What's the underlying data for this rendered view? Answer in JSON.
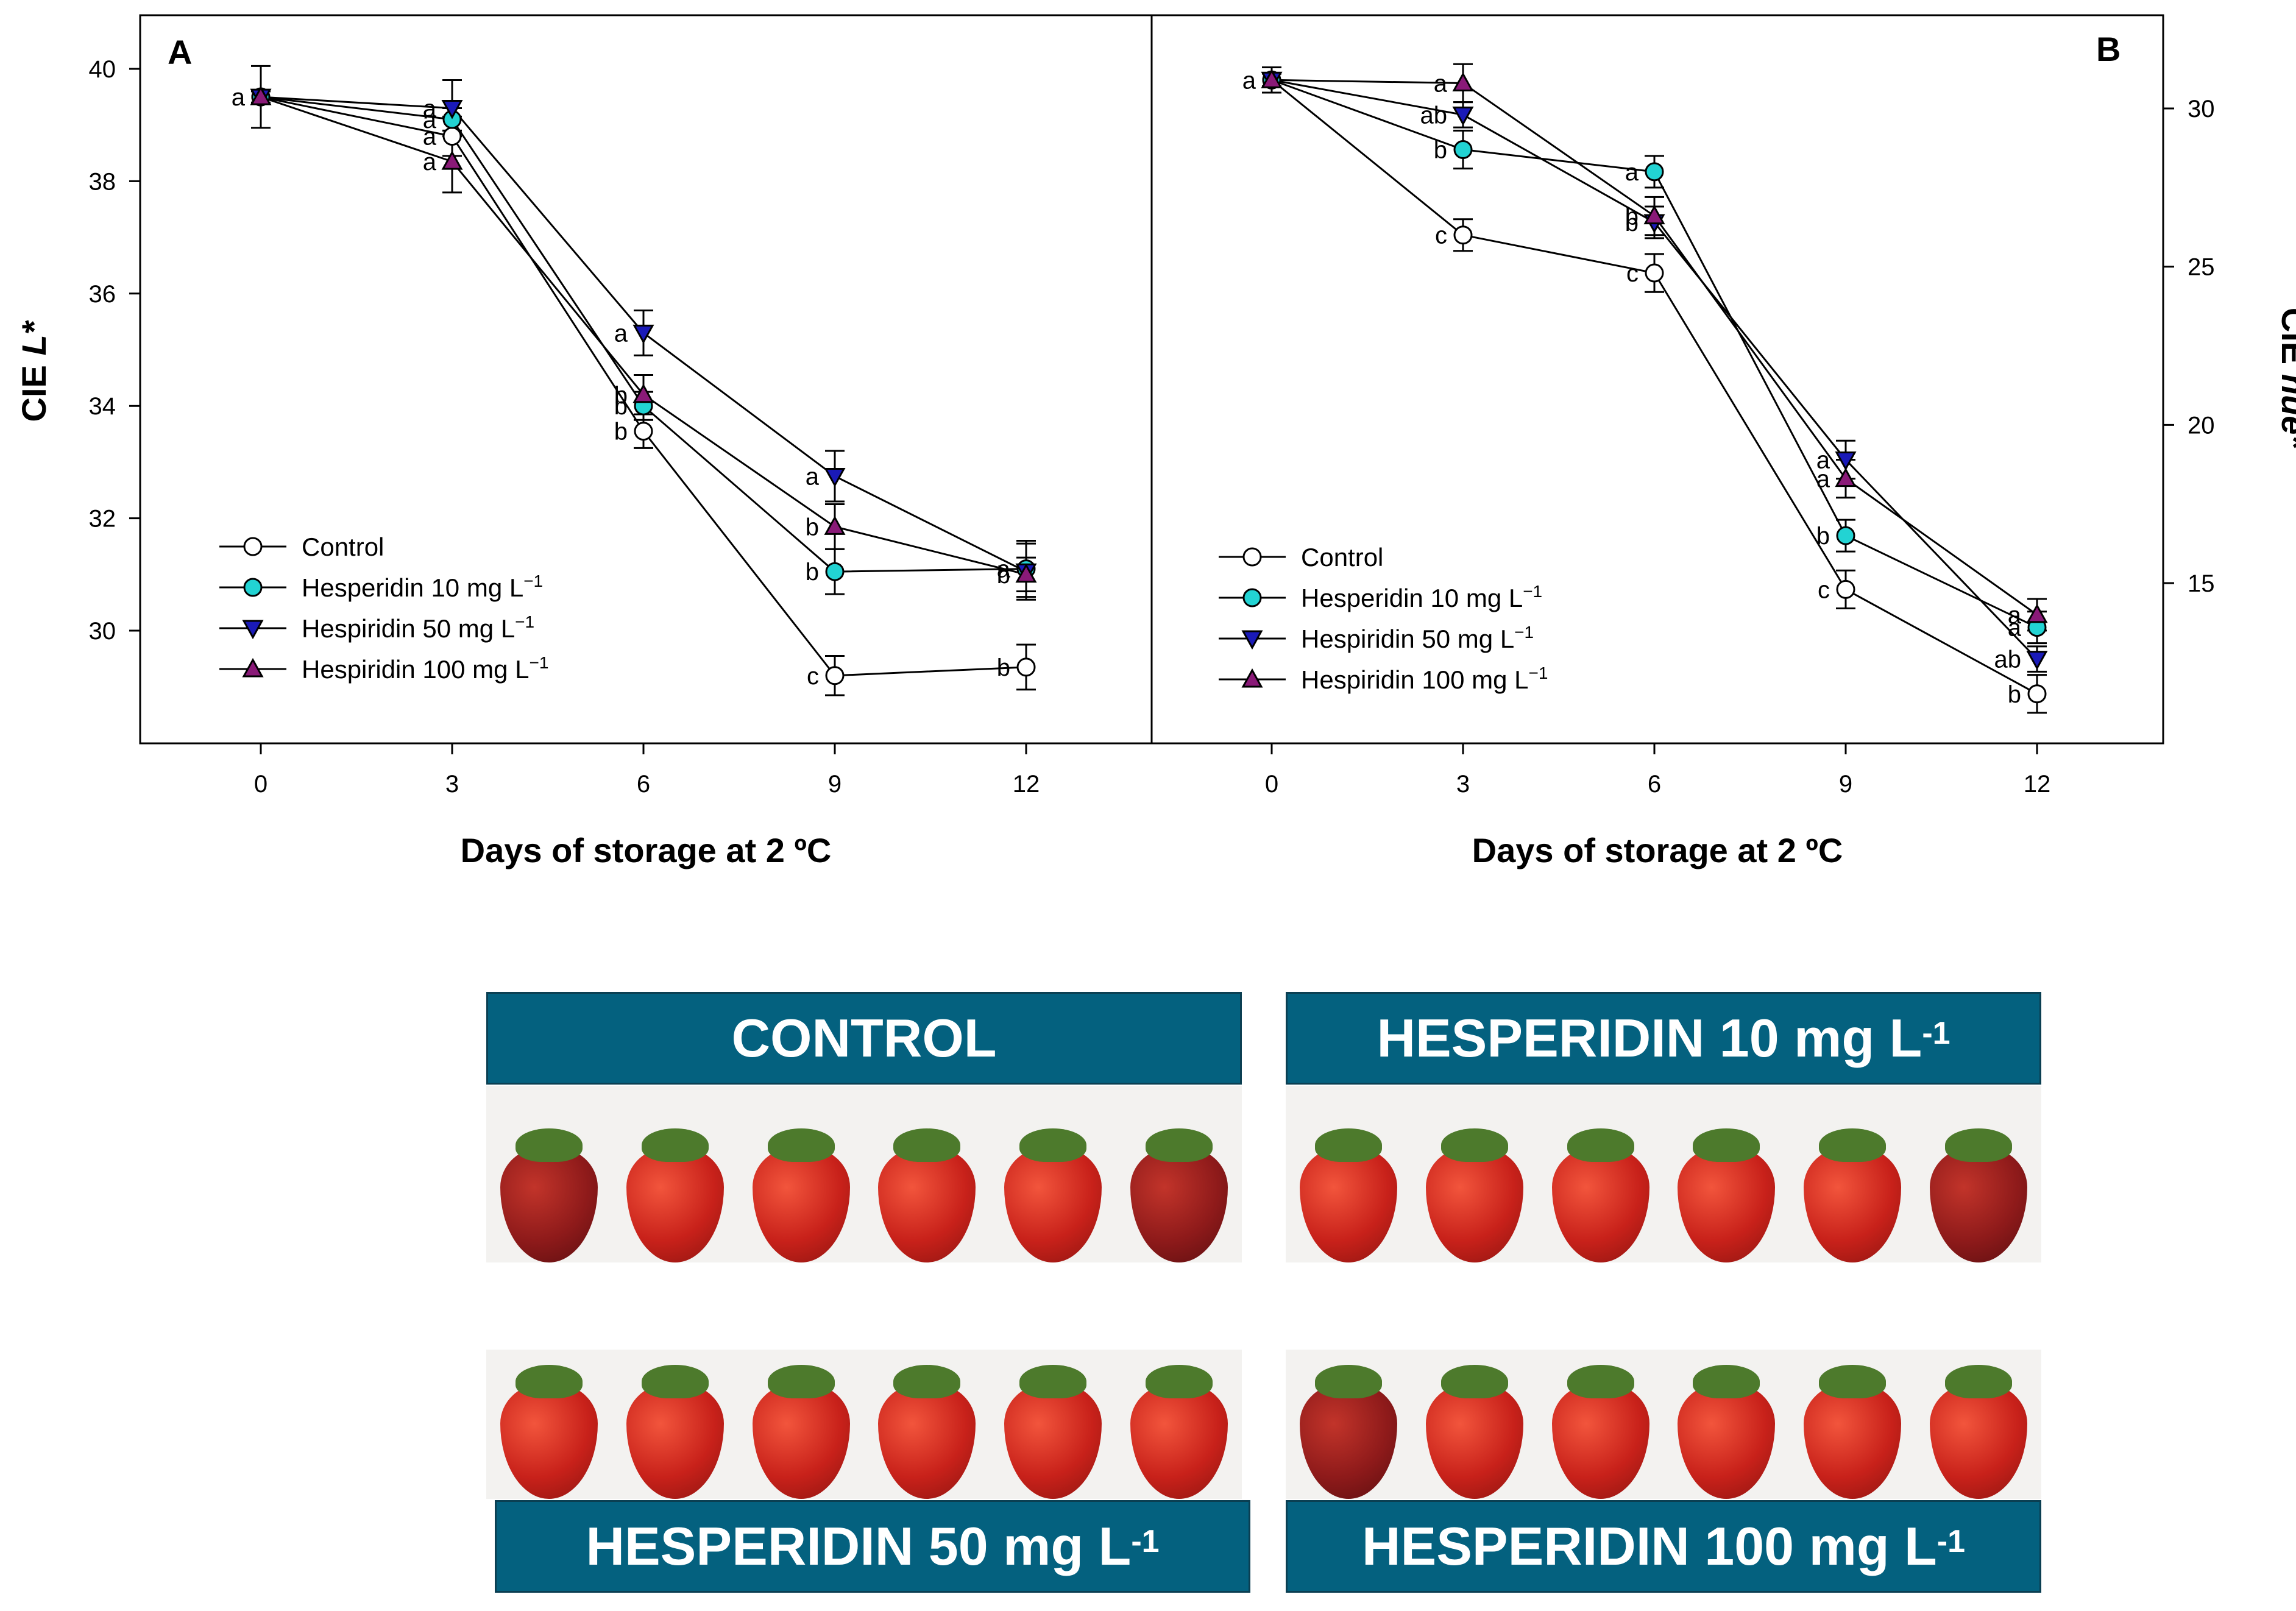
{
  "chart_data": [
    {
      "type": "line",
      "panel": "A",
      "xlabel": "Days of storage at 2 ºC",
      "ylabel": "CIE L*",
      "ylabel_main": "CIE ",
      "ylabel_italic": "L*",
      "x": [
        0,
        3,
        6,
        9,
        12
      ],
      "xticks": [
        "0",
        "3",
        "6",
        "9",
        "12"
      ],
      "ylim": [
        28,
        41
      ],
      "yticks": [
        30,
        32,
        34,
        36,
        38,
        40
      ],
      "ytick_labels": [
        "30",
        "32",
        "34",
        "36",
        "38",
        "40"
      ],
      "series": [
        {
          "name": "Control",
          "values": [
            39.5,
            38.8,
            33.55,
            29.2,
            29.35
          ],
          "errors": [
            0.55,
            0.35,
            0.3,
            0.35,
            0.4
          ],
          "letters": [
            "a",
            "a",
            "b",
            "c",
            "b"
          ]
        },
        {
          "name": "Hesperidin 10 mg L−1",
          "values": [
            39.5,
            39.1,
            34.0,
            31.05,
            31.1
          ],
          "errors": [
            0.1,
            0.2,
            0.25,
            0.4,
            0.5
          ],
          "letters": [
            "",
            "a",
            "b",
            "b",
            "a"
          ]
        },
        {
          "name": "Hespiridin 50 mg L−1",
          "values": [
            39.5,
            39.3,
            35.3,
            32.75,
            31.05
          ],
          "errors": [
            0.1,
            0.5,
            0.4,
            0.45,
            0.5
          ],
          "letters": [
            "",
            "a",
            "a",
            "a",
            ""
          ]
        },
        {
          "name": "Hespiridin 100 mg L−1",
          "values": [
            39.5,
            38.35,
            34.2,
            31.85,
            31.0
          ],
          "errors": [
            0.1,
            0.55,
            0.35,
            0.4,
            0.3
          ],
          "letters": [
            "",
            "a",
            "b",
            "b",
            "b"
          ]
        }
      ]
    },
    {
      "type": "line",
      "panel": "B",
      "xlabel": "Days of storage at 2 ºC",
      "ylabel": "CIE hue*",
      "ylabel_main": "CIE ",
      "ylabel_italic": "hue*",
      "x": [
        0,
        3,
        6,
        9,
        12
      ],
      "xticks": [
        "0",
        "3",
        "6",
        "9",
        "12"
      ],
      "ylim": [
        10.5,
        33.5
      ],
      "yticks": [
        15,
        20,
        25,
        30
      ],
      "ytick_labels": [
        "15",
        "20",
        "25",
        "30"
      ],
      "series": [
        {
          "name": "Control",
          "values": [
            30.9,
            26.0,
            24.8,
            14.8,
            11.5
          ],
          "errors": [
            0.4,
            0.5,
            0.6,
            0.6,
            0.6
          ],
          "letters": [
            "a",
            "c",
            "c",
            "c",
            "b"
          ]
        },
        {
          "name": "Hesperidin 10 mg L−1",
          "values": [
            30.9,
            28.7,
            28.0,
            16.5,
            13.6
          ],
          "errors": [
            0.2,
            0.6,
            0.5,
            0.5,
            0.5
          ],
          "letters": [
            "",
            "b",
            "a",
            "b",
            "a"
          ]
        },
        {
          "name": "Hespiridin 50 mg L−1",
          "values": [
            30.9,
            29.8,
            26.4,
            18.9,
            12.6
          ],
          "errors": [
            0.2,
            0.4,
            0.5,
            0.6,
            0.4
          ],
          "letters": [
            "",
            "ab",
            "b",
            "a",
            "ab"
          ]
        },
        {
          "name": "Hespiridin 100 mg L−1",
          "values": [
            30.9,
            30.8,
            26.6,
            18.3,
            14.0
          ],
          "errors": [
            0.2,
            0.6,
            0.6,
            0.6,
            0.5
          ],
          "letters": [
            "",
            "a",
            "b",
            "a",
            "a"
          ]
        }
      ]
    }
  ],
  "legend": {
    "items": [
      {
        "label": "Control",
        "sup": ""
      },
      {
        "label": "Hesperidin 10 mg L",
        "sup": "−1"
      },
      {
        "label": "Hespiridin 50 mg L",
        "sup": "−1"
      },
      {
        "label": "Hespiridin 100 mg L",
        "sup": "−1"
      }
    ]
  },
  "series_styles": [
    {
      "marker": "circle",
      "fill": "#ffffff"
    },
    {
      "marker": "circle",
      "fill": "#22d3d3"
    },
    {
      "marker": "triangle-down",
      "fill": "#1a1ab8"
    },
    {
      "marker": "triangle-up",
      "fill": "#8a1a78"
    }
  ],
  "banners": {
    "control": {
      "text": "CONTROL",
      "sup": ""
    },
    "h10": {
      "text": "HESPERIDIN 10 mg L",
      "sup": "-1"
    },
    "h50": {
      "text": "HESPERIDIN 50 mg L",
      "sup": "-1"
    },
    "h100": {
      "text": "HESPERIDIN 100 mg L",
      "sup": "-1"
    }
  },
  "banner_color": "#04617f"
}
